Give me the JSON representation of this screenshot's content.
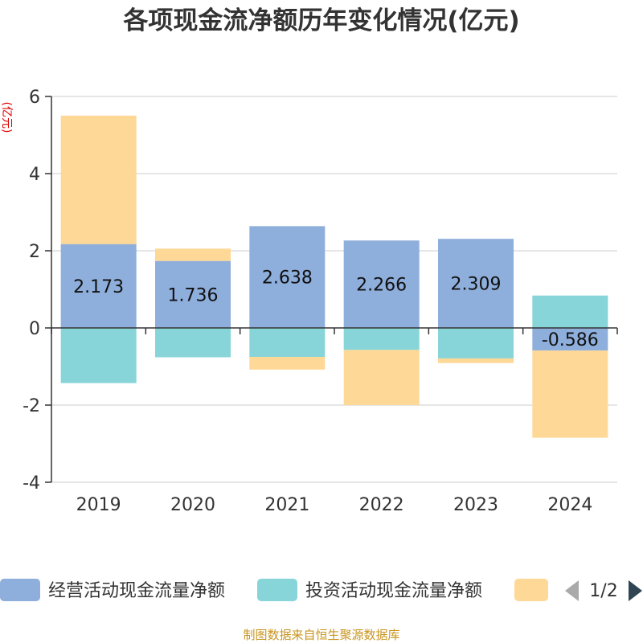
{
  "chart_data": {
    "type": "bar",
    "stacked": true,
    "title": "各项现金流净额历年变化情况(亿元)",
    "ylabel": "(亿元)",
    "xlabel": "",
    "ylim": [
      -4,
      6
    ],
    "yticks": [
      -4,
      -2,
      0,
      2,
      4,
      6
    ],
    "categories": [
      "2019",
      "2020",
      "2021",
      "2022",
      "2023",
      "2024"
    ],
    "series": [
      {
        "name": "经营活动现金流量净额",
        "color": "#8eaedb",
        "values": [
          2.173,
          1.736,
          2.638,
          2.266,
          2.309,
          -0.586
        ],
        "labels": [
          "2.173",
          "1.736",
          "2.638",
          "2.266",
          "2.309",
          "-0.586"
        ]
      },
      {
        "name": "投资活动现金流量净额",
        "color": "#87d5d8",
        "values": [
          -1.43,
          -0.76,
          -0.75,
          -0.57,
          -0.79,
          0.84
        ]
      },
      {
        "name": "",
        "color": "#fed896",
        "values": [
          3.33,
          0.32,
          -0.33,
          -1.43,
          -0.12,
          -2.26
        ]
      }
    ],
    "grid": true,
    "legend_position": "bottom",
    "legend_page": "1/2",
    "source": "制图数据来自恒生聚源数据库"
  }
}
